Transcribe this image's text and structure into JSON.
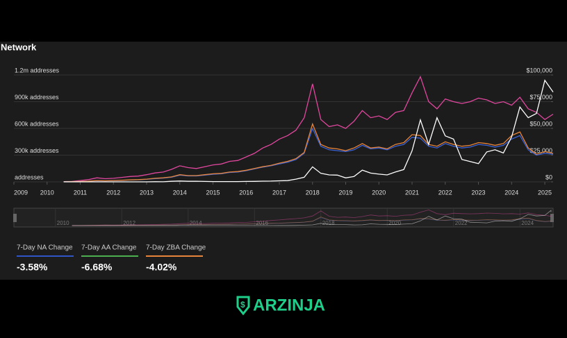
{
  "header": {
    "title": "Network"
  },
  "chart_data": {
    "type": "line",
    "xlim": [
      2009,
      2025.25
    ],
    "xticks": [
      2009,
      2010,
      2011,
      2012,
      2013,
      2014,
      2015,
      2016,
      2017,
      2018,
      2019,
      2020,
      2021,
      2022,
      2023,
      2024,
      2025
    ],
    "ylim": [
      0,
      1200000
    ],
    "yticks": [
      {
        "value": 0,
        "label": "addresses"
      },
      {
        "value": 300000,
        "label": "300k addresses"
      },
      {
        "value": 600000,
        "label": "600k addresses"
      },
      {
        "value": 900000,
        "label": "900k addresses"
      },
      {
        "value": 1200000,
        "label": "1.2m addresses"
      }
    ],
    "y2lim": [
      0,
      100000
    ],
    "y2ticks": [
      {
        "value": 0,
        "label": "$0"
      },
      {
        "value": 25000,
        "label": "$25,000"
      },
      {
        "value": 50000,
        "label": "$50,000"
      },
      {
        "value": 75000,
        "label": "$75,000"
      },
      {
        "value": 100000,
        "label": "$100,000"
      }
    ],
    "grid": true,
    "x": [
      2010.5,
      2010.75,
      2011,
      2011.25,
      2011.5,
      2011.75,
      2012,
      2012.25,
      2012.5,
      2012.75,
      2013,
      2013.25,
      2013.5,
      2013.75,
      2014,
      2014.25,
      2014.5,
      2014.75,
      2015,
      2015.25,
      2015.5,
      2015.75,
      2016,
      2016.25,
      2016.5,
      2016.75,
      2017,
      2017.25,
      2017.5,
      2017.75,
      2018,
      2018.25,
      2018.5,
      2018.75,
      2019,
      2019.25,
      2019.5,
      2019.75,
      2020,
      2020.25,
      2020.5,
      2020.75,
      2021,
      2021.25,
      2021.5,
      2021.75,
      2022,
      2022.25,
      2022.5,
      2022.75,
      2023,
      2023.25,
      2023.5,
      2023.75,
      2024,
      2024.25,
      2024.5,
      2024.75,
      2025,
      2025.25
    ],
    "series": [
      {
        "color": "#e0479e",
        "values": [
          3000,
          5000,
          15000,
          25000,
          45000,
          35000,
          40000,
          50000,
          60000,
          65000,
          80000,
          100000,
          110000,
          140000,
          180000,
          160000,
          150000,
          170000,
          190000,
          200000,
          230000,
          240000,
          280000,
          320000,
          380000,
          420000,
          480000,
          520000,
          580000,
          720000,
          1100000,
          700000,
          620000,
          640000,
          600000,
          680000,
          800000,
          720000,
          740000,
          700000,
          780000,
          800000,
          1000000,
          1180000,
          900000,
          820000,
          930000,
          900000,
          880000,
          900000,
          940000,
          920000,
          880000,
          900000,
          860000,
          950000,
          820000,
          780000,
          700000,
          760000
        ]
      },
      {
        "color": "#3a63d8",
        "values": [
          1000,
          2000,
          4000,
          7000,
          13000,
          11000,
          14000,
          17000,
          20000,
          23000,
          28000,
          37000,
          42000,
          52000,
          75000,
          66000,
          66000,
          75000,
          85000,
          90000,
          105000,
          110000,
          125000,
          145000,
          165000,
          180000,
          200000,
          220000,
          250000,
          320000,
          600000,
          400000,
          360000,
          350000,
          340000,
          360000,
          410000,
          370000,
          380000,
          360000,
          400000,
          420000,
          500000,
          490000,
          400000,
          380000,
          430000,
          400000,
          380000,
          390000,
          420000,
          410000,
          390000,
          410000,
          480000,
          520000,
          360000,
          300000,
          320000,
          310000
        ]
      },
      {
        "color": "#e8853a",
        "values": [
          1000,
          2000,
          5000,
          8000,
          15000,
          12000,
          15000,
          18000,
          22000,
          25000,
          30000,
          40000,
          45000,
          55000,
          80000,
          70000,
          70000,
          80000,
          90000,
          95000,
          110000,
          115000,
          130000,
          150000,
          170000,
          185000,
          210000,
          230000,
          260000,
          330000,
          650000,
          420000,
          380000,
          370000,
          350000,
          380000,
          430000,
          380000,
          390000,
          370000,
          420000,
          440000,
          530000,
          520000,
          420000,
          400000,
          450000,
          420000,
          400000,
          410000,
          440000,
          430000,
          410000,
          430000,
          520000,
          560000,
          380000,
          310000,
          340000,
          320000
        ]
      },
      {
        "color": "#ffffff",
        "axis": "y2",
        "values": [
          0,
          0,
          1,
          15,
          14,
          3,
          5,
          5,
          7,
          12,
          13,
          100,
          90,
          500,
          800,
          500,
          600,
          380,
          250,
          240,
          260,
          280,
          420,
          450,
          650,
          720,
          1000,
          1200,
          2500,
          4300,
          14000,
          8000,
          6500,
          6300,
          3700,
          5000,
          11000,
          8200,
          7200,
          6500,
          9200,
          11500,
          29000,
          58000,
          35000,
          60000,
          43000,
          40000,
          21000,
          19000,
          17000,
          28000,
          30000,
          27000,
          42000,
          70000,
          60000,
          64000,
          95000,
          84000
        ]
      }
    ],
    "navigator_xticks": [
      2010,
      2012,
      2014,
      2016,
      2018,
      2020,
      2022,
      2024
    ]
  },
  "stats": [
    {
      "label": "7-Day NA Change",
      "value": "-3.58%",
      "color": "#2f55c8"
    },
    {
      "label": "7-Day AA Change",
      "value": "-6.68%",
      "color": "#4caf50"
    },
    {
      "label": "7-Day ZBA Change",
      "value": "-4.02%",
      "color": "#e8853a"
    }
  ],
  "logo": {
    "text": "ARZINJA"
  }
}
